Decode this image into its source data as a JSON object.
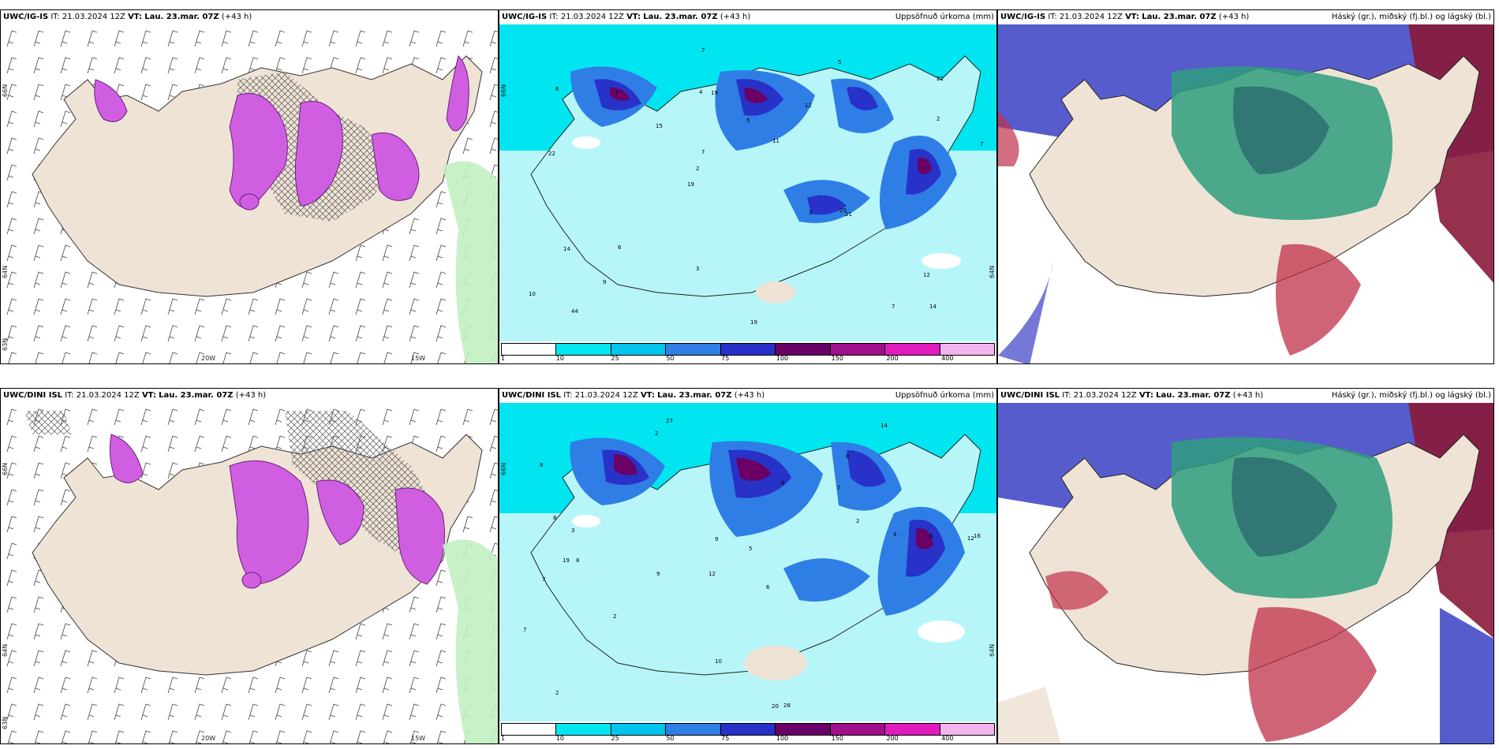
{
  "panels": [
    {
      "id": "top-left",
      "header_model": "UWC/IG-IS",
      "header_it": "IT: 21.03.2024 12Z",
      "header_vt_label": "VT:",
      "header_vt": "Lau. 23.mar. 07Z",
      "header_lead": "(+43 h)",
      "header_right": "",
      "lon_labels": [
        "20W",
        "15W"
      ],
      "lat_labels": [
        "66N",
        "64N",
        "63N"
      ]
    },
    {
      "id": "top-middle",
      "header_model": "UWC/IG-IS",
      "header_it": "IT: 21.03.2024 12Z",
      "header_vt_label": "VT:",
      "header_vt": "Lau. 23.mar. 07Z",
      "header_lead": "(+43 h)",
      "header_right": "Uppsöfnuð úrkoma (mm)",
      "lat_labels": [
        "66N",
        "64N"
      ],
      "values": [
        "14",
        "22",
        "22",
        "19",
        "12",
        "44",
        "4",
        "5",
        "14",
        "15",
        "10",
        "9",
        "19",
        "11",
        "21",
        "6",
        "7",
        "7",
        "3",
        "2",
        "2",
        "3",
        "7",
        "7",
        "5",
        "6",
        "7",
        "12",
        "20",
        "19"
      ]
    },
    {
      "id": "top-right",
      "header_model": "UWC/IG-IS",
      "header_it": "IT: 21.03.2024 12Z",
      "header_vt_label": "VT:",
      "header_vt": "Lau. 23.mar. 07Z",
      "header_lead": "(+43 h)",
      "header_right": "Háský (gr.), miðský (fj.bl.) og lágský (bl.)"
    },
    {
      "id": "bottom-left",
      "header_model": "UWC/DINI ISL",
      "header_it": "IT: 21.03.2024 12Z",
      "header_vt_label": "VT:",
      "header_vt": "Lau. 23.mar. 07Z",
      "header_lead": "(+43 h)",
      "header_right": "",
      "lon_labels": [
        "20W",
        "15W"
      ],
      "lat_labels": [
        "66N",
        "64N",
        "63N"
      ]
    },
    {
      "id": "bottom-middle",
      "header_model": "UWC/DINI ISL",
      "header_it": "IT: 21.03.2024 12Z",
      "header_vt_label": "VT:",
      "header_vt": "Lau. 23.mar. 07Z",
      "header_lead": "(+43 h)",
      "header_right": "Uppsöfnuð úrkoma (mm)",
      "lat_labels": [
        "66N",
        "64N"
      ],
      "values": [
        "27",
        "8",
        "12",
        "12",
        "6",
        "8",
        "8",
        "7",
        "7",
        "6",
        "5",
        "2",
        "2",
        "9",
        "20",
        "28",
        "10",
        "14",
        "2",
        "2",
        "3",
        "19",
        "16",
        "6",
        "7",
        "8",
        "9",
        "4"
      ]
    },
    {
      "id": "bottom-right",
      "header_model": "UWC/DINI ISL",
      "header_it": "IT: 21.03.2024 12Z",
      "header_vt_label": "VT:",
      "header_vt": "Lau. 23.mar. 07Z",
      "header_lead": "(+43 h)",
      "header_right": "Háský (gr.), miðský (fj.bl.) og lágský (bl.)"
    }
  ],
  "precip_legend": {
    "ticks": [
      "1",
      "10",
      "25",
      "50",
      "75",
      "100",
      "150",
      "200",
      "400"
    ],
    "colors": [
      "#ffffff",
      "#00e5f0",
      "#00c4ec",
      "#2f7ee6",
      "#2832c8",
      "#6a0066",
      "#a0108a",
      "#e01cbc",
      "#f4b4f0"
    ]
  },
  "colors": {
    "land": "#efe3d6",
    "snow_magenta": "#cf5fe0",
    "precip_bg": "#b7f6f8",
    "high_cloud": "#2f9e7c",
    "mid_cloud": "#c0304a",
    "low_cloud": "#3a3fc4",
    "wind_green": "#c2f0c2"
  }
}
